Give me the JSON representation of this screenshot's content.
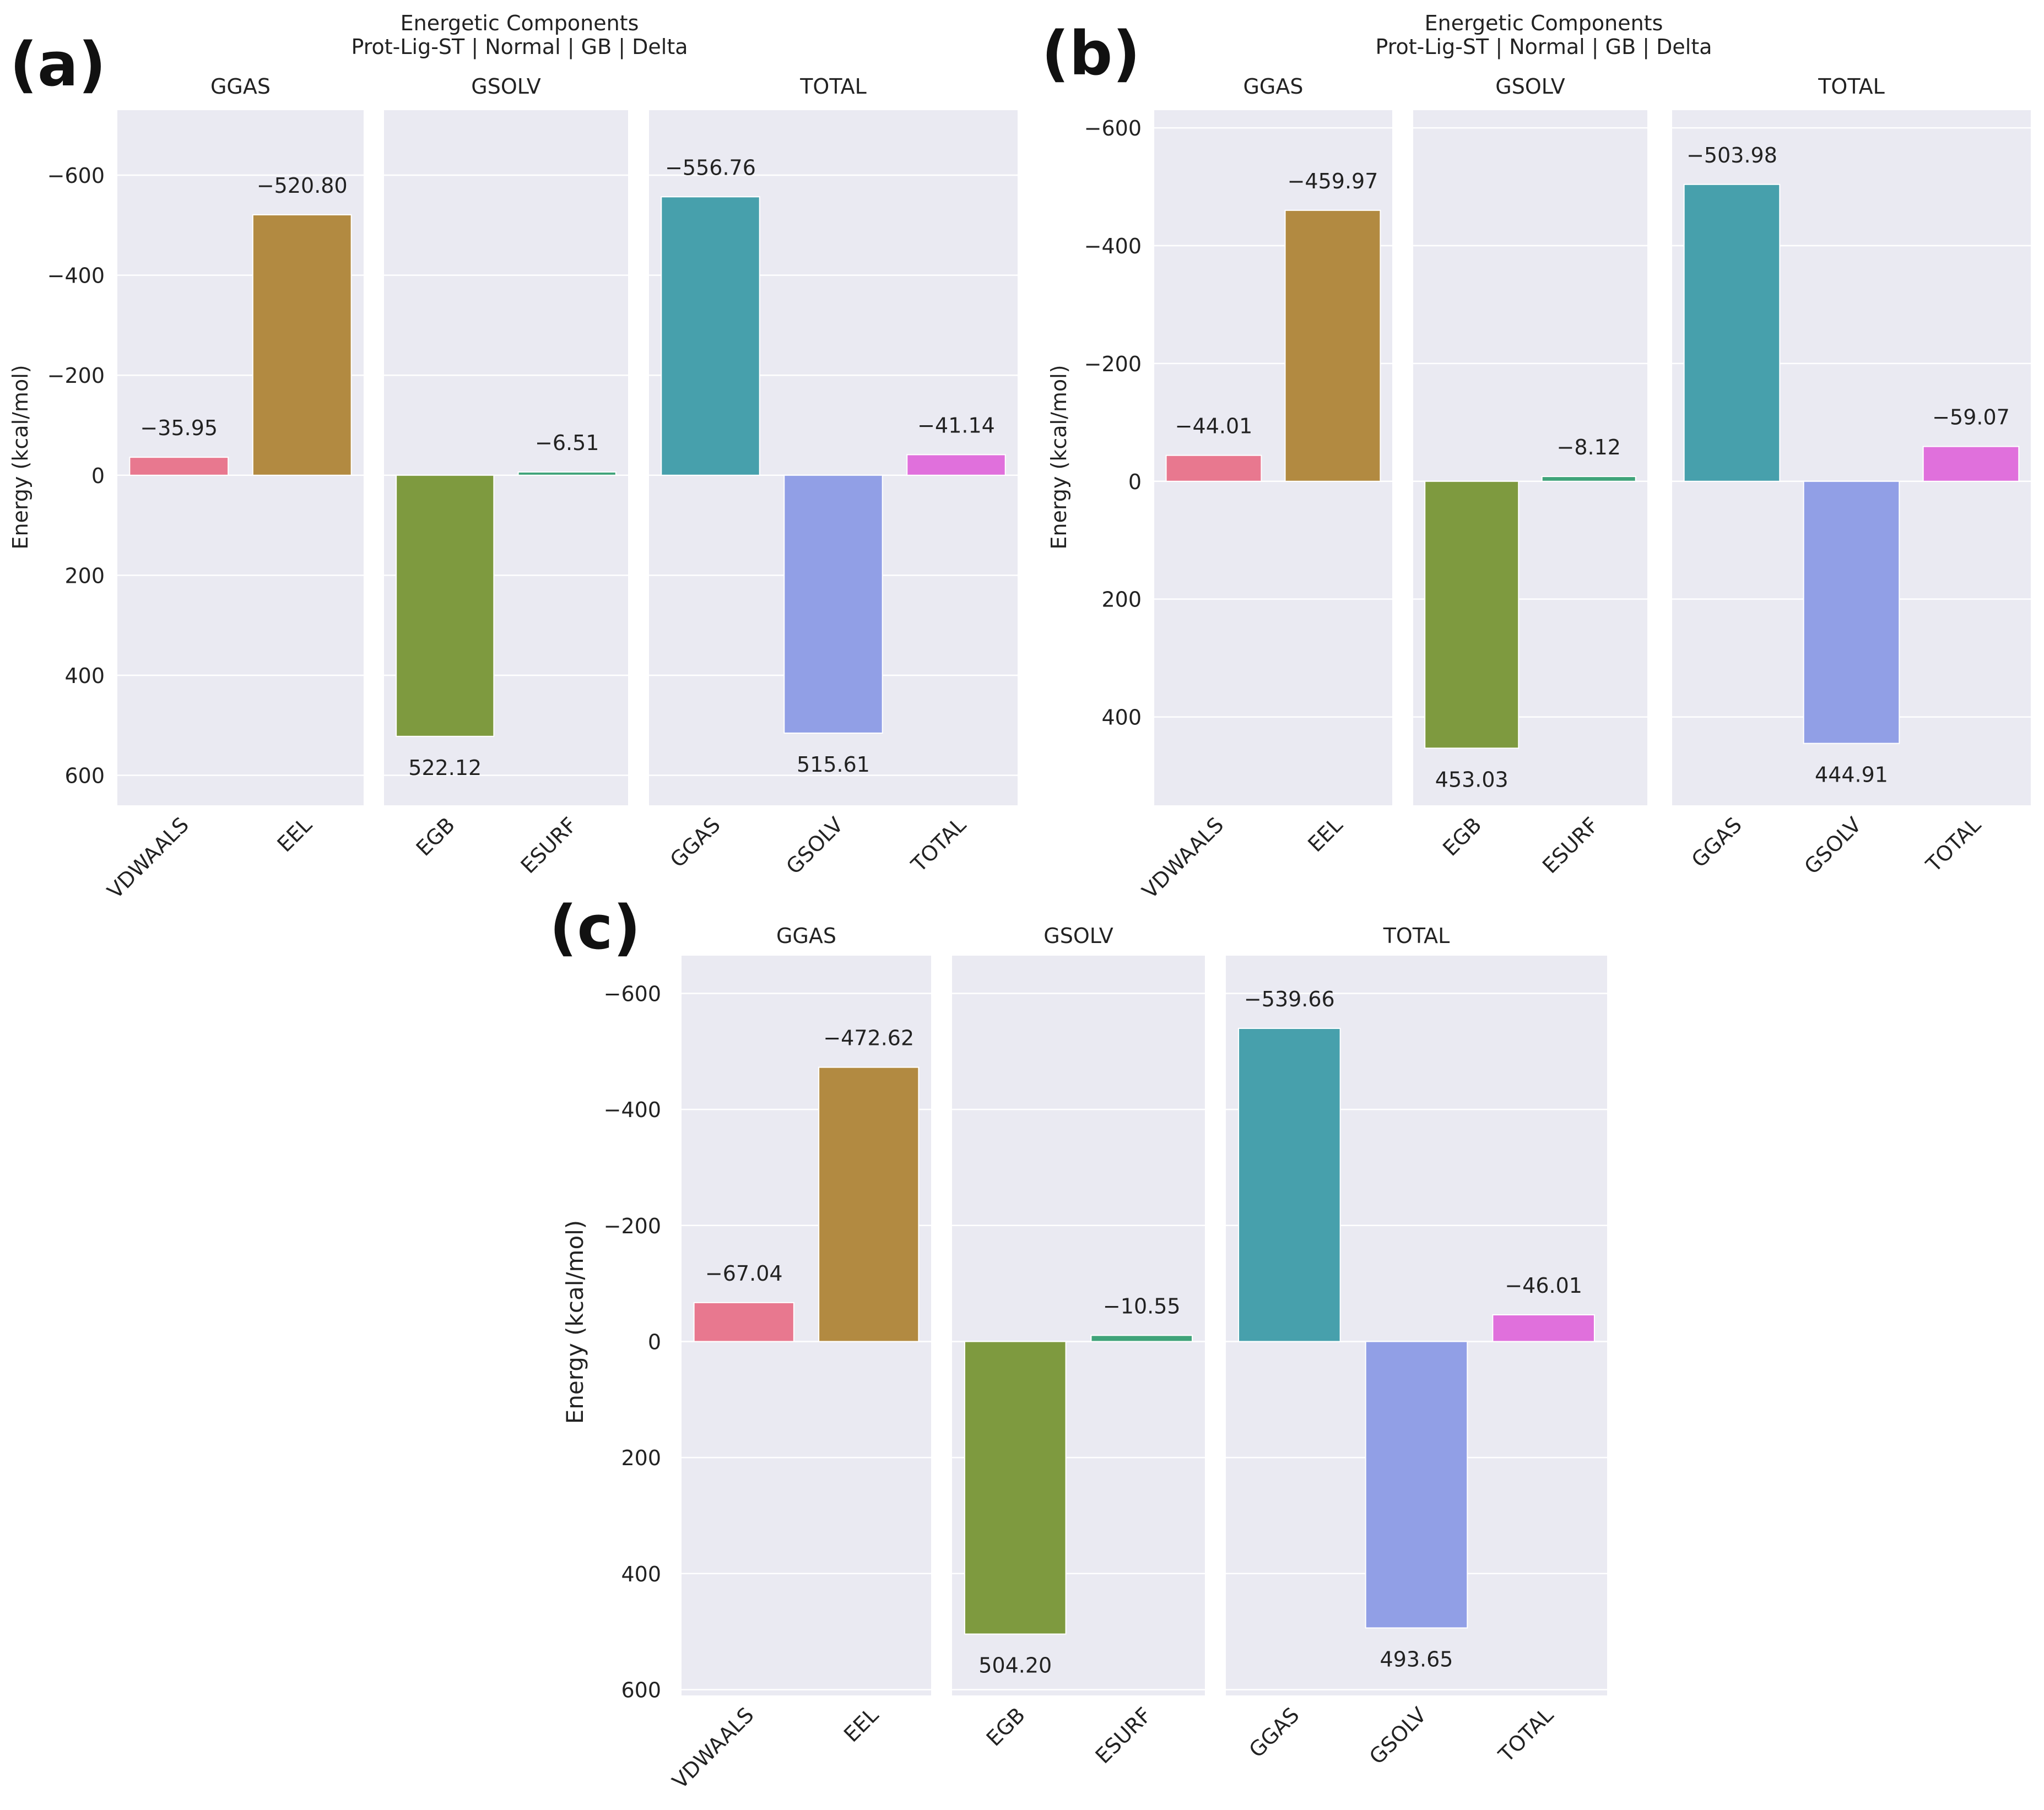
{
  "figure": {
    "panel_labels": [
      "(a)",
      "(b)",
      "(c)"
    ]
  },
  "chart_data": [
    {
      "panel": "(a)",
      "type": "bar",
      "title": "Energetic Components",
      "subtitle": "Prot-Lig-ST | Normal | GB | Delta",
      "ylabel": "Energy (kcal/mol)",
      "y_axis_inverted": true,
      "ylim": [
        -730,
        660
      ],
      "yticks": [
        -600,
        -400,
        -200,
        0,
        200,
        400,
        600
      ],
      "ytick_labels": [
        "−600",
        "−400",
        "−200",
        "0",
        "200",
        "400",
        "600"
      ],
      "grid": true,
      "facets": [
        {
          "title": "GGAS",
          "categories": [
            "VDWAALS",
            "EEL"
          ],
          "values": [
            -35.95,
            -520.8
          ],
          "labels": [
            "−35.95",
            "−520.80"
          ],
          "colors": [
            "#e8788f",
            "#b28a41"
          ]
        },
        {
          "title": "GSOLV",
          "categories": [
            "EGB",
            "ESURF"
          ],
          "values": [
            522.12,
            -6.51
          ],
          "labels": [
            "522.12",
            "−6.51"
          ],
          "colors": [
            "#7e9a3f",
            "#3fa37a"
          ]
        },
        {
          "title": "TOTAL",
          "categories": [
            "GGAS",
            "GSOLV",
            "TOTAL"
          ],
          "values": [
            -556.76,
            515.61,
            -41.14
          ],
          "labels": [
            "−556.76",
            "515.61",
            "−41.14"
          ],
          "colors": [
            "#47a0ac",
            "#919fe6",
            "#e070dc"
          ]
        }
      ]
    },
    {
      "panel": "(b)",
      "type": "bar",
      "title": "Energetic Components",
      "subtitle": "Prot-Lig-ST | Normal | GB | Delta",
      "ylabel": "Energy (kcal/mol)",
      "y_axis_inverted": true,
      "ylim": [
        -630,
        550
      ],
      "yticks": [
        -600,
        -400,
        -200,
        0,
        200,
        400
      ],
      "ytick_labels": [
        "−600",
        "−400",
        "−200",
        "0",
        "200",
        "400"
      ],
      "grid": true,
      "facets": [
        {
          "title": "GGAS",
          "categories": [
            "VDWAALS",
            "EEL"
          ],
          "values": [
            -44.01,
            -459.97
          ],
          "labels": [
            "−44.01",
            "−459.97"
          ],
          "colors": [
            "#e8788f",
            "#b28a41"
          ]
        },
        {
          "title": "GSOLV",
          "categories": [
            "EGB",
            "ESURF"
          ],
          "values": [
            453.03,
            -8.12
          ],
          "labels": [
            "453.03",
            "−8.12"
          ],
          "colors": [
            "#7e9a3f",
            "#3fa37a"
          ]
        },
        {
          "title": "TOTAL",
          "categories": [
            "GGAS",
            "GSOLV",
            "TOTAL"
          ],
          "values": [
            -503.98,
            444.91,
            -59.07
          ],
          "labels": [
            "−503.98",
            "444.91",
            "−59.07"
          ],
          "colors": [
            "#47a0ac",
            "#919fe6",
            "#e070dc"
          ]
        }
      ]
    },
    {
      "panel": "(c)",
      "type": "bar",
      "title": "",
      "subtitle": "",
      "ylabel": "Energy (kcal/mol)",
      "y_axis_inverted": true,
      "ylim": [
        -665,
        610
      ],
      "yticks": [
        -600,
        -400,
        -200,
        0,
        200,
        400,
        600
      ],
      "ytick_labels": [
        "−600",
        "−400",
        "−200",
        "0",
        "200",
        "400",
        "600"
      ],
      "grid": true,
      "facets": [
        {
          "title": "GGAS",
          "categories": [
            "VDWAALS",
            "EEL"
          ],
          "values": [
            -67.04,
            -472.62
          ],
          "labels": [
            "−67.04",
            "−472.62"
          ],
          "colors": [
            "#e8788f",
            "#b28a41"
          ]
        },
        {
          "title": "GSOLV",
          "categories": [
            "EGB",
            "ESURF"
          ],
          "values": [
            504.2,
            -10.55
          ],
          "labels": [
            "504.20",
            "−10.55"
          ],
          "colors": [
            "#7e9a3f",
            "#3fa37a"
          ]
        },
        {
          "title": "TOTAL",
          "categories": [
            "GGAS",
            "GSOLV",
            "TOTAL"
          ],
          "values": [
            -539.66,
            493.65,
            -46.01
          ],
          "labels": [
            "−539.66",
            "493.65",
            "−46.01"
          ],
          "colors": [
            "#47a0ac",
            "#919fe6",
            "#e070dc"
          ]
        }
      ]
    }
  ]
}
